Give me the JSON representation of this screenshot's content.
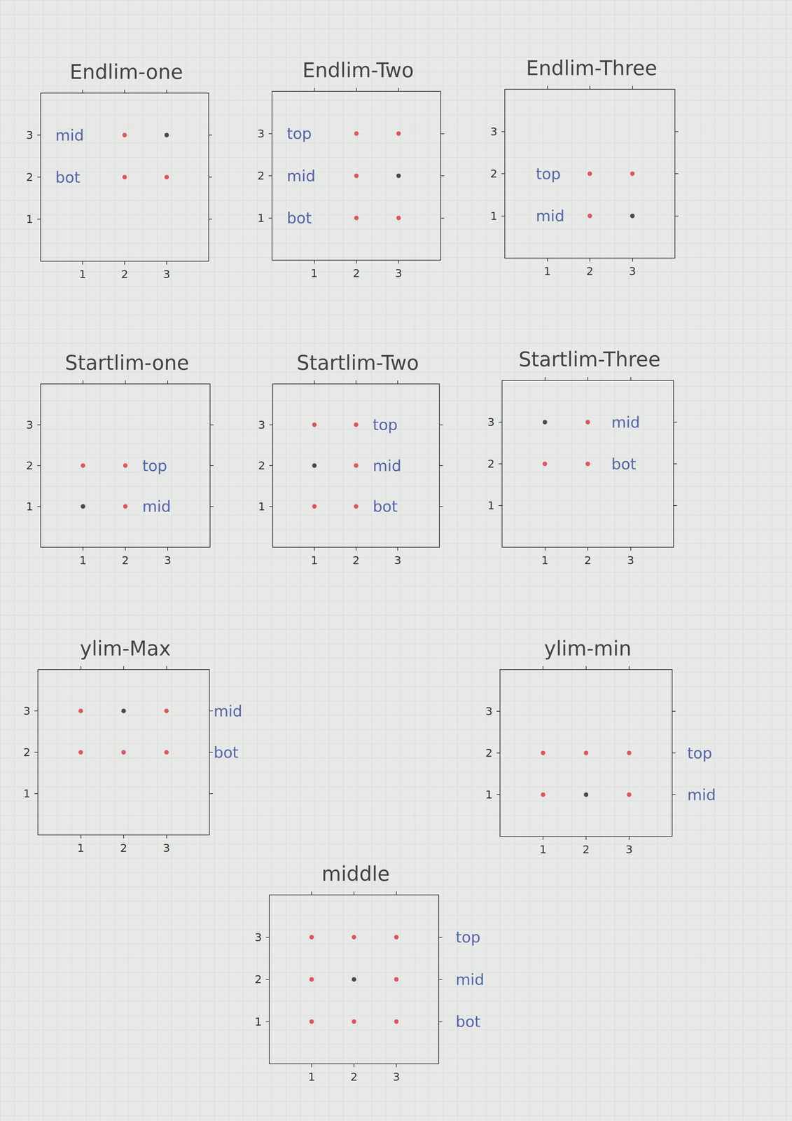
{
  "chart_data": [
    {
      "type": "scatter",
      "title": "Endlim-one",
      "xlim": [
        0,
        4
      ],
      "ylim": [
        0,
        4
      ],
      "xticks": [
        1,
        2,
        3
      ],
      "yticks": [
        1,
        2,
        3
      ],
      "grid": false,
      "x": [
        2,
        3,
        2,
        3
      ],
      "values": [
        3,
        3,
        2,
        2
      ],
      "colors": [
        "#e0303a",
        "#222222",
        "#e0303a",
        "#e0303a"
      ],
      "annotations": [
        {
          "text": "mid",
          "x": 0.35,
          "y": 3
        },
        {
          "text": "bot",
          "x": 0.35,
          "y": 2
        }
      ]
    },
    {
      "type": "scatter",
      "title": "Endlim-Two",
      "xlim": [
        0,
        4
      ],
      "ylim": [
        0,
        4
      ],
      "xticks": [
        1,
        2,
        3
      ],
      "yticks": [
        1,
        2,
        3
      ],
      "grid": false,
      "x": [
        2,
        3,
        2,
        3,
        2,
        3
      ],
      "values": [
        3,
        3,
        2,
        2,
        1,
        1
      ],
      "colors": [
        "#e0303a",
        "#e0303a",
        "#e0303a",
        "#222222",
        "#e0303a",
        "#e0303a"
      ],
      "annotations": [
        {
          "text": "top",
          "x": 0.35,
          "y": 3
        },
        {
          "text": "mid",
          "x": 0.35,
          "y": 2
        },
        {
          "text": "bot",
          "x": 0.35,
          "y": 1
        }
      ]
    },
    {
      "type": "scatter",
      "title": "Endlim-Three",
      "xlim": [
        0,
        4
      ],
      "ylim": [
        0,
        4
      ],
      "xticks": [
        1,
        2,
        3
      ],
      "yticks": [
        1,
        2,
        3
      ],
      "grid": false,
      "x": [
        2,
        3,
        2,
        3
      ],
      "values": [
        2,
        2,
        1,
        1
      ],
      "colors": [
        "#e0303a",
        "#e0303a",
        "#e0303a",
        "#222222"
      ],
      "annotations": [
        {
          "text": "top",
          "x": 0.73,
          "y": 2
        },
        {
          "text": "mid",
          "x": 0.73,
          "y": 1
        }
      ]
    },
    {
      "type": "scatter",
      "title": "Startlim-one",
      "xlim": [
        0,
        4
      ],
      "ylim": [
        0,
        4
      ],
      "xticks": [
        1,
        2,
        3
      ],
      "yticks": [
        1,
        2,
        3
      ],
      "grid": false,
      "x": [
        1,
        2,
        1,
        2
      ],
      "values": [
        2,
        2,
        1,
        1
      ],
      "colors": [
        "#e0303a",
        "#e0303a",
        "#222222",
        "#e0303a"
      ],
      "annotations": [
        {
          "text": "top",
          "x": 2.4,
          "y": 2
        },
        {
          "text": "mid",
          "x": 2.4,
          "y": 1
        }
      ]
    },
    {
      "type": "scatter",
      "title": "Startlim-Two",
      "xlim": [
        0,
        4
      ],
      "ylim": [
        0,
        4
      ],
      "xticks": [
        1,
        2,
        3
      ],
      "yticks": [
        1,
        2,
        3
      ],
      "grid": false,
      "x": [
        1,
        2,
        1,
        2,
        1,
        2
      ],
      "values": [
        3,
        3,
        2,
        2,
        1,
        1
      ],
      "colors": [
        "#e0303a",
        "#e0303a",
        "#222222",
        "#e0303a",
        "#e0303a",
        "#e0303a"
      ],
      "annotations": [
        {
          "text": "top",
          "x": 2.4,
          "y": 3
        },
        {
          "text": "mid",
          "x": 2.4,
          "y": 2
        },
        {
          "text": "bot",
          "x": 2.4,
          "y": 1
        }
      ]
    },
    {
      "type": "scatter",
      "title": "Startlim-Three",
      "xlim": [
        0,
        4
      ],
      "ylim": [
        0,
        4
      ],
      "xticks": [
        1,
        2,
        3
      ],
      "yticks": [
        1,
        2,
        3
      ],
      "grid": false,
      "x": [
        1,
        2,
        1,
        2
      ],
      "values": [
        3,
        3,
        2,
        2
      ],
      "colors": [
        "#222222",
        "#e0303a",
        "#e0303a",
        "#e0303a"
      ],
      "annotations": [
        {
          "text": "mid",
          "x": 2.55,
          "y": 3
        },
        {
          "text": "bot",
          "x": 2.55,
          "y": 2
        }
      ]
    },
    {
      "type": "scatter",
      "title": "ylim-Max",
      "xlim": [
        0,
        4
      ],
      "ylim": [
        0,
        4
      ],
      "xticks": [
        1,
        2,
        3
      ],
      "yticks": [
        1,
        2,
        3
      ],
      "grid": false,
      "x": [
        1,
        2,
        3,
        1,
        2,
        3
      ],
      "values": [
        3,
        3,
        3,
        2,
        2,
        2
      ],
      "colors": [
        "#e0303a",
        "#222222",
        "#e0303a",
        "#e0303a",
        "#e0303a",
        "#e0303a"
      ],
      "annotations": [
        {
          "text": "mid",
          "x": 4.1,
          "y": 3
        },
        {
          "text": "bot",
          "x": 4.1,
          "y": 2
        }
      ]
    },
    {
      "type": "scatter",
      "title": "ylim-min",
      "xlim": [
        0,
        4
      ],
      "ylim": [
        0,
        4
      ],
      "xticks": [
        1,
        2,
        3
      ],
      "yticks": [
        1,
        2,
        3
      ],
      "grid": false,
      "x": [
        1,
        2,
        3,
        1,
        2,
        3
      ],
      "values": [
        2,
        2,
        2,
        1,
        1,
        1
      ],
      "colors": [
        "#e0303a",
        "#e0303a",
        "#e0303a",
        "#e0303a",
        "#222222",
        "#e0303a"
      ],
      "annotations": [
        {
          "text": "top",
          "x": 4.35,
          "y": 2
        },
        {
          "text": "mid",
          "x": 4.35,
          "y": 1
        }
      ]
    },
    {
      "type": "scatter",
      "title": "middle",
      "xlim": [
        0,
        4
      ],
      "ylim": [
        0,
        4
      ],
      "xticks": [
        1,
        2,
        3
      ],
      "yticks": [
        1,
        2,
        3
      ],
      "grid": false,
      "x": [
        1,
        2,
        3,
        1,
        2,
        3,
        1,
        2,
        3
      ],
      "values": [
        3,
        3,
        3,
        2,
        2,
        2,
        1,
        1,
        1
      ],
      "colors": [
        "#e0303a",
        "#e0303a",
        "#e0303a",
        "#e0303a",
        "#222222",
        "#e0303a",
        "#e0303a",
        "#e0303a",
        "#e0303a"
      ],
      "annotations": [
        {
          "text": "top",
          "x": 4.4,
          "y": 3
        },
        {
          "text": "mid",
          "x": 4.4,
          "y": 2
        },
        {
          "text": "bot",
          "x": 4.4,
          "y": 1
        }
      ]
    }
  ]
}
